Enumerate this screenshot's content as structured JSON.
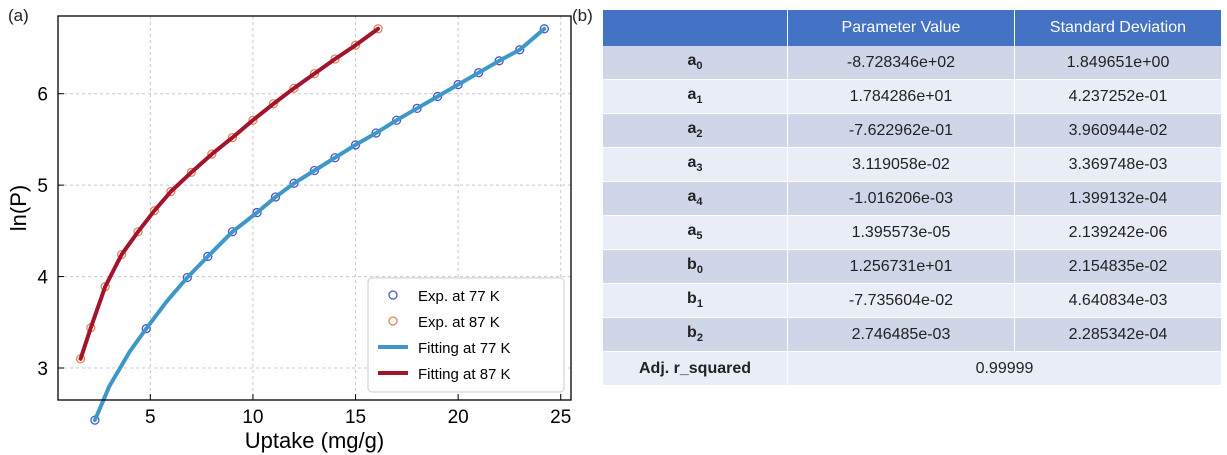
{
  "panel_a_label": "(a)",
  "panel_b_label": "(b)",
  "chart_data": {
    "type": "scatter",
    "xlabel": "Uptake (mg/g)",
    "ylabel": "ln(P)",
    "xlim": [
      0.5,
      25.5
    ],
    "ylim": [
      2.65,
      6.85
    ],
    "x_ticks": [
      5,
      10,
      15,
      20,
      25
    ],
    "y_ticks": [
      3,
      4,
      5,
      6
    ],
    "x_tick_labels": [
      "5",
      "10",
      "15",
      "20",
      "25"
    ],
    "y_tick_labels": [
      "3",
      "4",
      "5",
      "6"
    ],
    "grid": true,
    "legend_position": "lower-right",
    "colors": {
      "exp77": "#4a56c8",
      "exp87": "#e0855a",
      "fit77": "#3f97c9",
      "fit87": "#a3132c",
      "grid": "#c8c8c8"
    },
    "series": [
      {
        "name": "Exp. at 77 K",
        "kind": "markers",
        "x": [
          2.3,
          4.8,
          6.8,
          7.8,
          9.0,
          10.2,
          11.1,
          12.0,
          13.0,
          14.0,
          15.0,
          16.0,
          17.0,
          18.0,
          19.0,
          20.0,
          21.0,
          22.0,
          23.0,
          24.2
        ],
        "y": [
          2.43,
          3.43,
          3.99,
          4.22,
          4.49,
          4.7,
          4.87,
          5.02,
          5.16,
          5.3,
          5.44,
          5.57,
          5.71,
          5.84,
          5.97,
          6.1,
          6.23,
          6.36,
          6.48,
          6.71
        ]
      },
      {
        "name": "Exp. at 87 K",
        "kind": "markers",
        "x": [
          1.6,
          2.1,
          2.8,
          3.6,
          4.4,
          5.2,
          6.0,
          7.0,
          8.0,
          9.0,
          10.0,
          11.0,
          12.0,
          13.0,
          14.0,
          15.0,
          16.1
        ],
        "y": [
          3.1,
          3.44,
          3.89,
          4.24,
          4.49,
          4.72,
          4.93,
          5.14,
          5.34,
          5.52,
          5.71,
          5.89,
          6.06,
          6.22,
          6.38,
          6.53,
          6.71
        ]
      },
      {
        "name": "Fitting at 77 K",
        "kind": "line",
        "x": [
          2.3,
          3.0,
          4.0,
          4.8,
          5.8,
          6.8,
          7.8,
          9.0,
          10.2,
          11.1,
          12.0,
          13.0,
          14.0,
          15.0,
          16.0,
          17.0,
          18.0,
          19.0,
          20.0,
          21.0,
          22.0,
          23.0,
          24.2
        ],
        "y": [
          2.43,
          2.8,
          3.18,
          3.43,
          3.73,
          3.99,
          4.22,
          4.49,
          4.7,
          4.87,
          5.02,
          5.16,
          5.3,
          5.44,
          5.57,
          5.71,
          5.84,
          5.97,
          6.1,
          6.23,
          6.36,
          6.48,
          6.71
        ]
      },
      {
        "name": "Fitting at 87 K",
        "kind": "line",
        "x": [
          1.6,
          2.1,
          2.8,
          3.6,
          4.4,
          5.2,
          6.0,
          7.0,
          8.0,
          9.0,
          10.0,
          11.0,
          12.0,
          13.0,
          14.0,
          15.0,
          16.1
        ],
        "y": [
          3.1,
          3.44,
          3.89,
          4.24,
          4.49,
          4.72,
          4.93,
          5.14,
          5.34,
          5.52,
          5.71,
          5.89,
          6.06,
          6.22,
          6.38,
          6.53,
          6.71
        ]
      }
    ]
  },
  "table": {
    "headers": [
      "",
      "Parameter Value",
      "Standard Deviation"
    ],
    "rows": [
      {
        "base": "a",
        "sub": "0",
        "value": "-8.728346e+02",
        "std": "1.849651e+00"
      },
      {
        "base": "a",
        "sub": "1",
        "value": "1.784286e+01",
        "std": "4.237252e-01"
      },
      {
        "base": "a",
        "sub": "2",
        "value": "-7.622962e-01",
        "std": "3.960944e-02"
      },
      {
        "base": "a",
        "sub": "3",
        "value": "3.119058e-02",
        "std": "3.369748e-03"
      },
      {
        "base": "a",
        "sub": "4",
        "value": "-1.016206e-03",
        "std": "1.399132e-04"
      },
      {
        "base": "a",
        "sub": "5",
        "value": "1.395573e-05",
        "std": "2.139242e-06"
      },
      {
        "base": "b",
        "sub": "0",
        "value": "1.256731e+01",
        "std": "2.154835e-02"
      },
      {
        "base": "b",
        "sub": "1",
        "value": "-7.735604e-02",
        "std": "4.640834e-03"
      },
      {
        "base": "b",
        "sub": "2",
        "value": "2.746485e-03",
        "std": "2.285342e-04"
      }
    ],
    "footer_label": "Adj. r_squared",
    "footer_value": "0.99999"
  }
}
